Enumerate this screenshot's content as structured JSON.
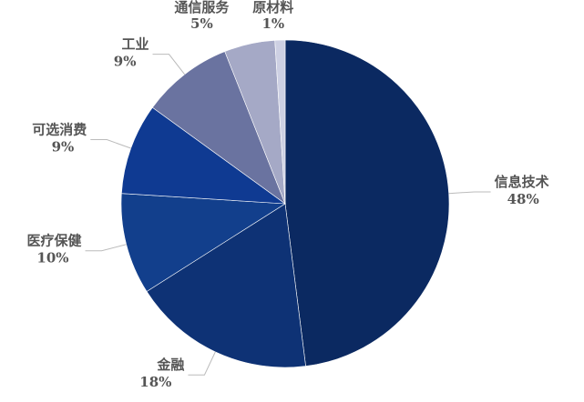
{
  "chart_data": {
    "type": "pie",
    "categories": [
      "信息技术",
      "金融",
      "医疗保健",
      "可选消费",
      "工业",
      "通信服务",
      "原材料"
    ],
    "values": [
      48,
      18,
      10,
      9,
      9,
      5,
      1
    ],
    "value_labels": [
      "48%",
      "18%",
      "10%",
      "9%",
      "9%",
      "5%",
      "1%"
    ],
    "colors": [
      "#0b2961",
      "#0e3275",
      "#123f8c",
      "#0f3a92",
      "#6a73a0",
      "#a5a9c6",
      "#cdd0e3"
    ]
  }
}
